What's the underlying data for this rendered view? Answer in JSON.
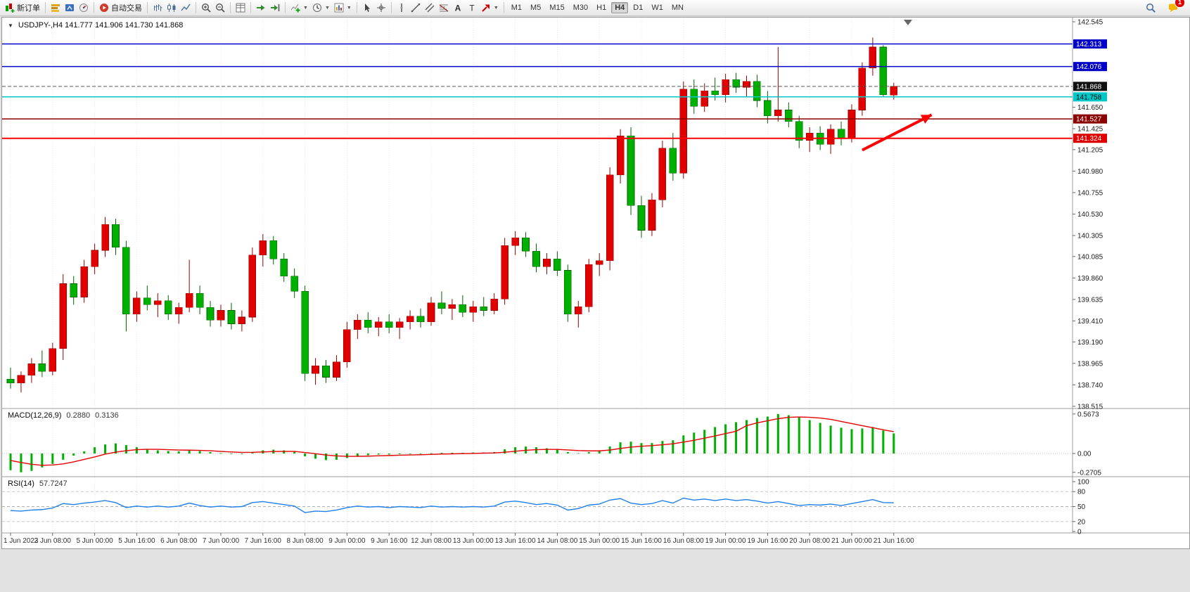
{
  "toolbar": {
    "active_timeframe": "H4",
    "items": [
      {
        "type": "button",
        "name": "new-order-button",
        "icon": "new-order",
        "label": "新订单"
      },
      {
        "type": "sep"
      },
      {
        "type": "icon",
        "name": "market-watch-button",
        "icon": "market-watch"
      },
      {
        "type": "icon",
        "name": "navigator-button",
        "icon": "navigator"
      },
      {
        "type": "icon",
        "name": "terminal-button",
        "icon": "terminal"
      },
      {
        "type": "sep"
      },
      {
        "type": "button",
        "name": "auto-trading-button",
        "icon": "auto-trading",
        "label": "自动交易"
      },
      {
        "type": "sep"
      },
      {
        "type": "icon",
        "name": "bar-chart-button",
        "icon": "bar-chart"
      },
      {
        "type": "icon",
        "name": "candlestick-chart-button",
        "icon": "candle-chart"
      },
      {
        "type": "icon",
        "name": "line-chart-button",
        "icon": "line-chart"
      },
      {
        "type": "sep"
      },
      {
        "type": "icon",
        "name": "zoom-in-button",
        "icon": "zoom-in"
      },
      {
        "type": "icon",
        "name": "zoom-out-button",
        "icon": "zoom-out"
      },
      {
        "type": "sep"
      },
      {
        "type": "icon",
        "name": "tile-windows-button",
        "icon": "tile-windows"
      },
      {
        "type": "sep"
      },
      {
        "type": "icon",
        "name": "auto-scroll-button",
        "icon": "auto-scroll"
      },
      {
        "type": "icon",
        "name": "chart-shift-button",
        "icon": "chart-shift"
      },
      {
        "type": "sep"
      },
      {
        "type": "icon",
        "name": "indicators-button",
        "icon": "indicators",
        "dropdown": true
      },
      {
        "type": "icon",
        "name": "periods-button",
        "icon": "periods",
        "dropdown": true
      },
      {
        "type": "icon",
        "name": "templates-button",
        "icon": "templates",
        "dropdown": true
      },
      {
        "type": "sep"
      },
      {
        "type": "icon",
        "name": "cursor-button",
        "icon": "cursor"
      },
      {
        "type": "icon",
        "name": "crosshair-button",
        "icon": "crosshair"
      },
      {
        "type": "sep"
      },
      {
        "type": "icon",
        "name": "vertical-line-button",
        "icon": "vline"
      },
      {
        "type": "icon",
        "name": "trendline-button",
        "icon": "trendline"
      },
      {
        "type": "icon",
        "name": "equidistant-channel-button",
        "icon": "channel"
      },
      {
        "type": "icon",
        "name": "fibonacci-button",
        "icon": "fibonacci"
      },
      {
        "type": "icon",
        "name": "text-button",
        "icon": "text"
      },
      {
        "type": "icon",
        "name": "label-button",
        "icon": "label"
      },
      {
        "type": "icon",
        "name": "arrows-button",
        "icon": "arrows",
        "dropdown": true
      },
      {
        "type": "sep"
      },
      {
        "type": "tf",
        "name": "timeframe-m1-button",
        "label": "M1"
      },
      {
        "type": "tf",
        "name": "timeframe-m5-button",
        "label": "M5"
      },
      {
        "type": "tf",
        "name": "timeframe-m15-button",
        "label": "M15"
      },
      {
        "type": "tf",
        "name": "timeframe-m30-button",
        "label": "M30"
      },
      {
        "type": "tf",
        "name": "timeframe-h1-button",
        "label": "H1"
      },
      {
        "type": "tf",
        "name": "timeframe-h4-button",
        "label": "H4",
        "active": true
      },
      {
        "type": "tf",
        "name": "timeframe-d1-button",
        "label": "D1"
      },
      {
        "type": "tf",
        "name": "timeframe-w1-button",
        "label": "W1"
      },
      {
        "type": "tf",
        "name": "timeframe-mn-button",
        "label": "MN"
      }
    ],
    "right_items": [
      {
        "type": "icon",
        "name": "search-button",
        "icon": "search"
      },
      {
        "type": "icon",
        "name": "community-button",
        "icon": "community",
        "badge": "1"
      }
    ]
  },
  "chart": {
    "title": "USDJPY-,H4 141.777 141.906 141.730 141.868",
    "symbol": "USDJPY-",
    "timeframe": "H4"
  },
  "indicators": {
    "macd": {
      "title": "MACD(12,26,9)",
      "main_value": "0.2880",
      "signal_value": "0.3136"
    },
    "rsi": {
      "title": "RSI(14)",
      "value": "57.7247"
    }
  },
  "chart_data": {
    "type": "candlestick",
    "symbol": "USDJPY-",
    "timeframe": "H4",
    "ylim": [
      138.515,
      142.545
    ],
    "up_color": "#e00000",
    "down_color": "#00b000",
    "current_ohlc": {
      "open": 141.777,
      "high": 141.906,
      "low": 141.73,
      "close": 141.868
    },
    "y_ticks": [
      "142.545",
      "141.650",
      "141.425",
      "141.205",
      "140.980",
      "140.755",
      "140.530",
      "140.305",
      "140.085",
      "139.860",
      "139.635",
      "139.410",
      "139.190",
      "138.965",
      "138.740",
      "138.515"
    ],
    "time_label_every": 4,
    "time_labels": [
      "1 Jun 2023",
      "2 Jun 08:00",
      "5 Jun 00:00",
      "5 Jun 16:00",
      "6 Jun 08:00",
      "7 Jun 00:00",
      "7 Jun 16:00",
      "8 Jun 08:00",
      "9 Jun 00:00",
      "9 Jun 16:00",
      "12 Jun 08:00",
      "13 Jun 00:00",
      "13 Jun 16:00",
      "14 Jun 08:00",
      "15 Jun 00:00",
      "15 Jun 16:00",
      "16 Jun 08:00",
      "19 Jun 00:00",
      "19 Jun 16:00",
      "20 Jun 08:00",
      "21 Jun 00:00",
      "21 Jun 16:00"
    ],
    "candles": [
      [
        138.8,
        138.92,
        138.7,
        138.76
      ],
      [
        138.76,
        138.88,
        138.66,
        138.84
      ],
      [
        138.84,
        139.02,
        138.76,
        138.96
      ],
      [
        138.96,
        139.1,
        138.82,
        138.88
      ],
      [
        138.88,
        139.18,
        138.84,
        139.12
      ],
      [
        139.12,
        139.9,
        139.0,
        139.8
      ],
      [
        139.8,
        139.88,
        139.58,
        139.66
      ],
      [
        139.66,
        140.05,
        139.6,
        139.98
      ],
      [
        139.98,
        140.22,
        139.9,
        140.15
      ],
      [
        140.15,
        140.5,
        140.08,
        140.42
      ],
      [
        140.42,
        140.48,
        140.1,
        140.18
      ],
      [
        140.18,
        140.25,
        139.3,
        139.48
      ],
      [
        139.48,
        139.72,
        139.4,
        139.65
      ],
      [
        139.65,
        139.78,
        139.52,
        139.58
      ],
      [
        139.58,
        139.7,
        139.45,
        139.62
      ],
      [
        139.62,
        139.68,
        139.42,
        139.48
      ],
      [
        139.48,
        139.6,
        139.38,
        139.55
      ],
      [
        139.55,
        140.05,
        139.5,
        139.7
      ],
      [
        139.7,
        139.78,
        139.48,
        139.55
      ],
      [
        139.55,
        139.62,
        139.35,
        139.42
      ],
      [
        139.42,
        139.58,
        139.35,
        139.52
      ],
      [
        139.52,
        139.6,
        139.32,
        139.38
      ],
      [
        139.38,
        139.52,
        139.3,
        139.45
      ],
      [
        139.45,
        140.18,
        139.4,
        140.1
      ],
      [
        140.1,
        140.32,
        139.98,
        140.25
      ],
      [
        140.25,
        140.3,
        140.0,
        140.06
      ],
      [
        140.06,
        140.12,
        139.82,
        139.88
      ],
      [
        139.88,
        139.96,
        139.65,
        139.72
      ],
      [
        139.72,
        139.78,
        138.78,
        138.86
      ],
      [
        138.86,
        139.02,
        138.74,
        138.94
      ],
      [
        138.94,
        139.0,
        138.76,
        138.82
      ],
      [
        138.82,
        139.05,
        138.78,
        138.98
      ],
      [
        138.98,
        139.4,
        138.92,
        139.32
      ],
      [
        139.32,
        139.48,
        139.22,
        139.42
      ],
      [
        139.42,
        139.5,
        139.28,
        139.34
      ],
      [
        139.34,
        139.45,
        139.25,
        139.4
      ],
      [
        139.4,
        139.48,
        139.28,
        139.34
      ],
      [
        139.34,
        139.44,
        139.22,
        139.4
      ],
      [
        139.4,
        139.52,
        139.32,
        139.46
      ],
      [
        139.46,
        139.54,
        139.34,
        139.4
      ],
      [
        139.4,
        139.66,
        139.36,
        139.6
      ],
      [
        139.6,
        139.72,
        139.48,
        139.54
      ],
      [
        139.54,
        139.64,
        139.42,
        139.58
      ],
      [
        139.58,
        139.68,
        139.45,
        139.5
      ],
      [
        139.5,
        139.62,
        139.4,
        139.56
      ],
      [
        139.56,
        139.66,
        139.46,
        139.52
      ],
      [
        139.52,
        139.7,
        139.48,
        139.64
      ],
      [
        139.64,
        140.28,
        139.58,
        140.2
      ],
      [
        140.2,
        140.35,
        140.1,
        140.28
      ],
      [
        140.28,
        140.34,
        140.08,
        140.14
      ],
      [
        140.14,
        140.22,
        139.92,
        139.98
      ],
      [
        139.98,
        140.12,
        139.9,
        140.06
      ],
      [
        140.06,
        140.14,
        139.88,
        139.94
      ],
      [
        139.94,
        140.0,
        139.4,
        139.48
      ],
      [
        139.48,
        139.62,
        139.34,
        139.56
      ],
      [
        139.56,
        140.06,
        139.5,
        140.0
      ],
      [
        140.0,
        140.12,
        139.88,
        140.04
      ],
      [
        140.04,
        141.02,
        139.94,
        140.94
      ],
      [
        140.94,
        141.42,
        140.85,
        141.35
      ],
      [
        141.35,
        141.44,
        140.52,
        140.62
      ],
      [
        140.62,
        140.72,
        140.28,
        140.36
      ],
      [
        140.36,
        140.75,
        140.3,
        140.68
      ],
      [
        140.68,
        141.3,
        140.6,
        141.22
      ],
      [
        141.22,
        141.38,
        140.88,
        140.96
      ],
      [
        140.96,
        141.92,
        140.9,
        141.84
      ],
      [
        141.84,
        141.94,
        141.58,
        141.66
      ],
      [
        141.66,
        141.9,
        141.6,
        141.82
      ],
      [
        141.82,
        141.96,
        141.72,
        141.78
      ],
      [
        141.78,
        142.0,
        141.7,
        141.94
      ],
      [
        141.94,
        142.01,
        141.8,
        141.86
      ],
      [
        141.86,
        141.98,
        141.76,
        141.92
      ],
      [
        141.92,
        141.99,
        141.65,
        141.72
      ],
      [
        141.72,
        141.82,
        141.48,
        141.56
      ],
      [
        141.56,
        142.28,
        141.5,
        141.62
      ],
      [
        141.62,
        141.7,
        141.44,
        141.5
      ],
      [
        141.5,
        141.56,
        141.22,
        141.3
      ],
      [
        141.3,
        141.44,
        141.18,
        141.38
      ],
      [
        141.38,
        141.45,
        141.2,
        141.26
      ],
      [
        141.26,
        141.47,
        141.16,
        141.42
      ],
      [
        141.42,
        141.5,
        141.25,
        141.32
      ],
      [
        141.32,
        141.68,
        141.28,
        141.62
      ],
      [
        141.62,
        142.12,
        141.56,
        142.06
      ],
      [
        142.06,
        142.38,
        141.98,
        142.28
      ],
      [
        142.28,
        142.3,
        141.76,
        141.78
      ],
      [
        141.777,
        141.906,
        141.73,
        141.868
      ]
    ],
    "price_lines": [
      {
        "price": 142.313,
        "label": "142.313",
        "line_color": "#0000c8",
        "box_color": "#0000c8",
        "text_color": "#ffffff",
        "style": "solid",
        "width": 1.5
      },
      {
        "price": 142.076,
        "label": "142.076",
        "line_color": "#0000c8",
        "box_color": "#0000c8",
        "text_color": "#ffffff",
        "style": "solid",
        "width": 1.5
      },
      {
        "price": 141.868,
        "label": "141.868",
        "line_color": "#555555",
        "box_color": "#111111",
        "text_color": "#ffffff",
        "style": "dashed",
        "width": 1
      },
      {
        "price": 141.758,
        "label": "141.758",
        "line_color": "#00c8c8",
        "box_color": "#00c8c8",
        "text_color": "#000000",
        "style": "solid",
        "width": 1.5
      },
      {
        "price": 141.527,
        "label": "141.527",
        "line_color": "#8b0000",
        "box_color": "#8b0000",
        "text_color": "#ffffff",
        "style": "solid",
        "width": 1.5
      },
      {
        "price": 141.324,
        "label": "141.324",
        "line_color": "#ff0000",
        "box_color": "#e00000",
        "text_color": "#ffffff",
        "style": "solid",
        "width": 2
      }
    ],
    "arrow_annotation": {
      "from": {
        "index": 81,
        "price": 141.2
      },
      "to": {
        "index": 87.6,
        "price": 141.57
      },
      "color": "#ff0000"
    },
    "macd": {
      "type": "bar",
      "title": "MACD(12,26,9)",
      "hist_color": "#00b000",
      "signal_color": "#e60000",
      "axis_labels": [
        "0.5673",
        "0.00",
        "-0.2705"
      ],
      "histogram": [
        -0.24,
        -0.27,
        -0.25,
        -0.2,
        -0.15,
        -0.09,
        -0.03,
        0.03,
        0.09,
        0.13,
        0.145,
        0.12,
        0.09,
        0.06,
        0.045,
        0.035,
        0.03,
        0.04,
        0.035,
        0.02,
        0.005,
        -0.005,
        -0.005,
        0.02,
        0.045,
        0.055,
        0.045,
        0.025,
        -0.04,
        -0.075,
        -0.095,
        -0.09,
        -0.065,
        -0.04,
        -0.025,
        -0.015,
        -0.015,
        -0.01,
        -0.005,
        -0.005,
        0.005,
        0.01,
        0.01,
        0.01,
        0.015,
        0.015,
        0.02,
        0.06,
        0.09,
        0.1,
        0.09,
        0.075,
        0.06,
        0.02,
        0.005,
        0.02,
        0.04,
        0.1,
        0.16,
        0.17,
        0.15,
        0.15,
        0.18,
        0.19,
        0.26,
        0.3,
        0.34,
        0.38,
        0.42,
        0.45,
        0.48,
        0.51,
        0.53,
        0.567,
        0.55,
        0.52,
        0.48,
        0.44,
        0.4,
        0.37,
        0.35,
        0.36,
        0.38,
        0.33,
        0.288
      ],
      "signal": [
        -0.1,
        -0.13,
        -0.155,
        -0.17,
        -0.165,
        -0.15,
        -0.12,
        -0.085,
        -0.05,
        -0.01,
        0.02,
        0.04,
        0.055,
        0.06,
        0.06,
        0.055,
        0.05,
        0.048,
        0.045,
        0.04,
        0.03,
        0.022,
        0.016,
        0.017,
        0.022,
        0.028,
        0.03,
        0.03,
        0.015,
        -0.003,
        -0.022,
        -0.035,
        -0.041,
        -0.041,
        -0.038,
        -0.033,
        -0.029,
        -0.025,
        -0.021,
        -0.018,
        -0.013,
        -0.008,
        -0.005,
        -0.002,
        0.001,
        0.005,
        0.008,
        0.018,
        0.032,
        0.046,
        0.055,
        0.059,
        0.059,
        0.051,
        0.042,
        0.038,
        0.038,
        0.05,
        0.072,
        0.092,
        0.104,
        0.113,
        0.126,
        0.139,
        0.163,
        0.19,
        0.22,
        0.252,
        0.286,
        0.319,
        0.4,
        0.44,
        0.47,
        0.5,
        0.52,
        0.525,
        0.52,
        0.51,
        0.49,
        0.46,
        0.43,
        0.4,
        0.37,
        0.34,
        0.3136
      ]
    },
    "rsi": {
      "type": "line",
      "title": "RSI(14)",
      "color": "#1f7fe8",
      "current": 57.7247,
      "levels": [
        100,
        80,
        50,
        20,
        0
      ],
      "values": [
        42,
        41,
        43,
        44,
        47,
        56,
        54,
        57,
        59,
        62,
        58,
        48,
        51,
        49,
        51,
        49,
        51,
        57,
        52,
        49,
        51,
        49,
        50,
        58,
        60,
        57,
        54,
        51,
        38,
        41,
        40,
        43,
        48,
        51,
        49,
        50,
        48,
        50,
        49,
        48,
        51,
        49,
        50,
        49,
        50,
        49,
        51,
        59,
        61,
        58,
        54,
        56,
        53,
        43,
        46,
        53,
        55,
        63,
        66,
        57,
        54,
        56,
        62,
        57,
        67,
        63,
        65,
        62,
        65,
        62,
        64,
        61,
        57,
        60,
        56,
        52,
        54,
        53,
        55,
        52,
        56,
        60,
        64,
        58,
        57.7
      ]
    }
  }
}
